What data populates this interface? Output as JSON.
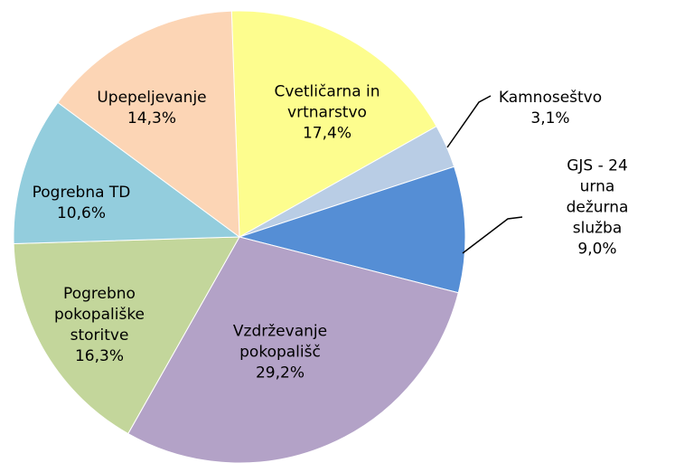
{
  "chart_data": {
    "type": "pie",
    "categories": [
      "Cvetličarna in\nvrtnarstvo",
      "Kamnoseštvo",
      "GJS - 24 urna\ndežurna služba",
      "Vzdrževanje\npokopališč",
      "Pogrebno\npokopališke\nstoritve",
      "Pogrebna TD",
      "Upepeljevanje"
    ],
    "values": [
      17.4,
      3.1,
      9.0,
      29.2,
      16.3,
      10.6,
      14.3
    ],
    "value_labels": [
      "17,4%",
      "3,1%",
      "9,0%",
      "29,2%",
      "16,3%",
      "10,6%",
      "14,3%"
    ],
    "colors": [
      "#fdfd8e",
      "#b9cde5",
      "#558ed5",
      "#b3a2c7",
      "#c3d69b",
      "#93cddd",
      "#fcd5b5"
    ]
  }
}
